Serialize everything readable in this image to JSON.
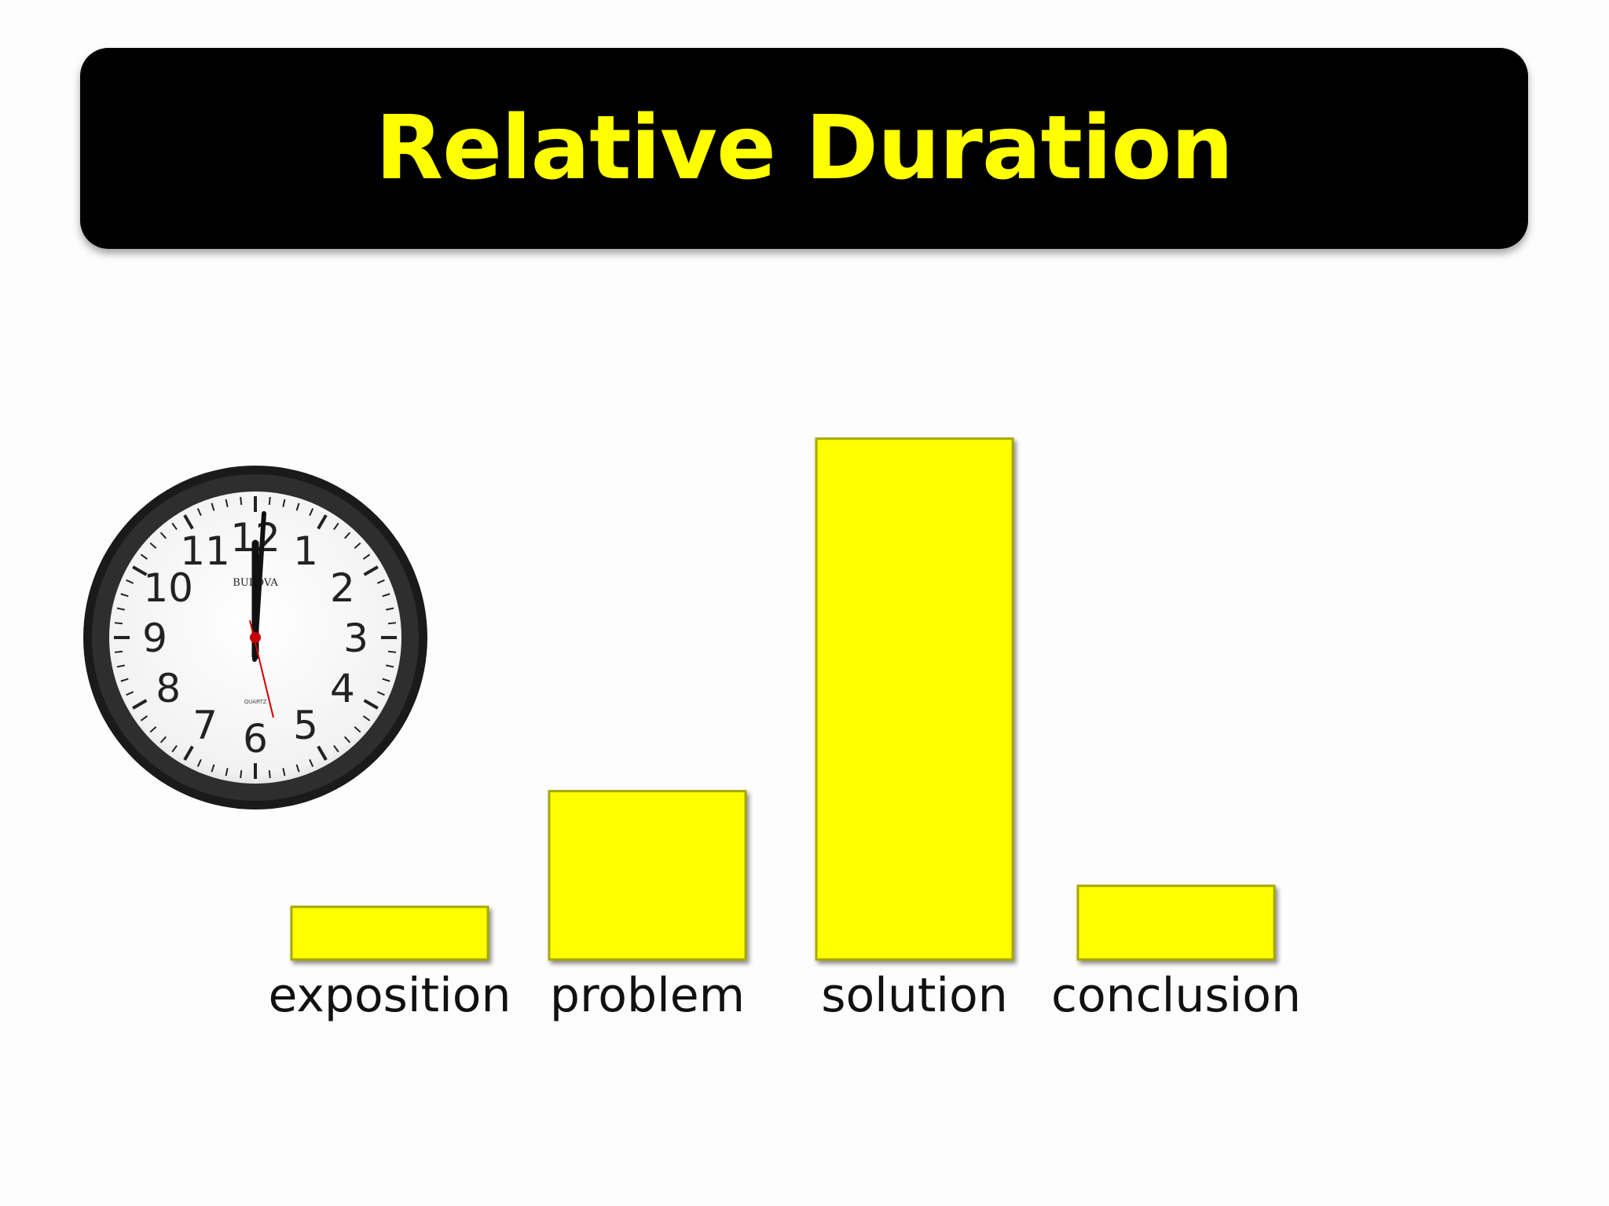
{
  "slide": {
    "title": "Relative Duration"
  },
  "clock": {
    "brand": "BULOVA",
    "caption": "QUARTZ",
    "numerals": [
      "12",
      "1",
      "2",
      "3",
      "4",
      "5",
      "6",
      "7",
      "8",
      "9",
      "10",
      "11"
    ],
    "time_shown": "12:00"
  },
  "colors": {
    "bar": "#ffff00",
    "title_text": "#ffff00",
    "title_bg": "#000000"
  },
  "chart_data": {
    "type": "bar",
    "categories": [
      "exposition",
      "problem",
      "solution",
      "conclusion"
    ],
    "values": [
      1,
      3.2,
      9.9,
      1.4
    ],
    "title": "",
    "xlabel": "",
    "ylabel": "",
    "ylim": [
      0,
      10
    ],
    "grid": false,
    "legend": "none"
  }
}
